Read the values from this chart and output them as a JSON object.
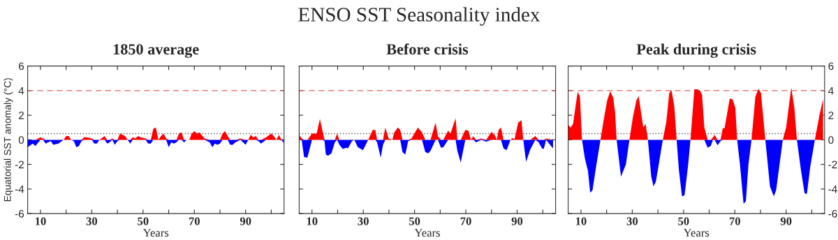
{
  "chart_data": [
    {
      "type": "area",
      "title": "1850 average",
      "annotations": [
        "ENSO SST Seasonality index"
      ],
      "xlabel": "Years",
      "ylabel": "Equatorial SST anomaly (°C)",
      "xlim": [
        5,
        105
      ],
      "ylim": [
        -6,
        6
      ],
      "xticks": [
        10,
        {
          "value": 20,
          "label": null
        },
        30,
        {
          "value": 40,
          "label": null
        },
        50,
        {
          "value": 60,
          "label": null
        },
        70,
        {
          "value": 80,
          "label": null
        },
        90,
        {
          "value": 100,
          "label": null
        }
      ],
      "yticks": [
        -6,
        -4,
        -2,
        0,
        2,
        4,
        6
      ],
      "ref_lines": [
        {
          "axis": "y",
          "value": 4,
          "color": "#e06060",
          "line_style": "dashed"
        },
        {
          "axis": "y",
          "value": 0.5,
          "color": "#555555",
          "line_style": "dotted"
        }
      ],
      "x": [
        5,
        7,
        8,
        10,
        11,
        12,
        14,
        15,
        17,
        19,
        20,
        21,
        22,
        23,
        24,
        25,
        26,
        27,
        28,
        30,
        31,
        32,
        33,
        35,
        36,
        37,
        38,
        39,
        40,
        41,
        43,
        44,
        45,
        46,
        47,
        48,
        49,
        51,
        52,
        53,
        54,
        55,
        56,
        57,
        58,
        59,
        60,
        61,
        62,
        63,
        64,
        65,
        66,
        67,
        68,
        69,
        70,
        71,
        72,
        74,
        76,
        77,
        78,
        79,
        80,
        81,
        82,
        83,
        84,
        85,
        86,
        88,
        90,
        91,
        92,
        93,
        94,
        95,
        96,
        98,
        100,
        101,
        102,
        103,
        104,
        105
      ],
      "series": [
        {
          "color": "#ff0000",
          "values": [
            0,
            0,
            0,
            0.2,
            0.1,
            0,
            0,
            0,
            0,
            0,
            0.3,
            0.3,
            0,
            0,
            0,
            0,
            0,
            0.2,
            0.2,
            0.1,
            0,
            0,
            0,
            0.3,
            0,
            0,
            0.1,
            0,
            0,
            0.5,
            0.3,
            0,
            0,
            0.2,
            0.1,
            0.3,
            0.2,
            0.1,
            0,
            0,
            0.9,
            1.0,
            0,
            0.3,
            0.5,
            0.1,
            0,
            0,
            0,
            0,
            0.5,
            0.6,
            0,
            0,
            0,
            0.5,
            0.7,
            0.5,
            0.6,
            0.1,
            0,
            0,
            0,
            0,
            0,
            0.5,
            0.7,
            0.3,
            0,
            0,
            0,
            0.1,
            0,
            0,
            0.4,
            0.2,
            0.3,
            0,
            0,
            0.2,
            0.5,
            0.3,
            0,
            0.4,
            0,
            0
          ]
        },
        {
          "color": "#0000ff",
          "values": [
            -0.6,
            -0.3,
            -0.5,
            0,
            0,
            -0.3,
            -0.1,
            -0.4,
            -0.3,
            0,
            0,
            0,
            0,
            -0.1,
            -0.6,
            -0.5,
            -0.1,
            0,
            0,
            0,
            -0.3,
            -0.3,
            0,
            0,
            -0.3,
            -0.2,
            0,
            -0.4,
            -0.1,
            0,
            0,
            0,
            -0.3,
            0,
            0,
            0,
            0,
            0,
            -0.3,
            -0.3,
            0,
            0,
            0,
            0,
            0,
            0,
            -0.6,
            -0.2,
            -0.3,
            -0.2,
            0,
            0,
            -0.2,
            0,
            0,
            0,
            0,
            0,
            0,
            0,
            -0.2,
            -0.6,
            -0.3,
            -0.4,
            -0.3,
            0,
            0,
            0,
            -0.4,
            -0.4,
            -0.2,
            0,
            -0.4,
            0,
            0,
            0,
            0,
            -0.1,
            -0.3,
            0,
            0,
            0,
            0,
            0,
            0,
            -0.3
          ]
        }
      ]
    },
    {
      "type": "area",
      "title": "Before crisis",
      "xlabel": "Years",
      "tick_labels": "x",
      "xlim": [
        5,
        105
      ],
      "ylim": [
        -6,
        6
      ],
      "xticks": [
        10,
        {
          "value": 20,
          "label": null
        },
        30,
        {
          "value": 40,
          "label": null
        },
        50,
        {
          "value": 60,
          "label": null
        },
        70,
        {
          "value": 80,
          "label": null
        },
        90,
        {
          "value": 100,
          "label": null
        }
      ],
      "yticks": [
        -6,
        -4,
        -2,
        0,
        2,
        4,
        6
      ],
      "ref_lines": [
        {
          "axis": "y",
          "value": 4,
          "color": "#e06060",
          "line_style": "dashed"
        },
        {
          "axis": "y",
          "value": 0.5,
          "color": "#555555",
          "line_style": "dotted"
        }
      ],
      "x": [
        5,
        6,
        6.9,
        8.2,
        10,
        11.8,
        13.1,
        14,
        14.9,
        15.4,
        16.3,
        17.6,
        18.9,
        19.8,
        20.7,
        22,
        23.4,
        24,
        25.6,
        26.5,
        27.9,
        29.9,
        31.9,
        33.7,
        34.7,
        35.4,
        36.8,
        37.7,
        38.6,
        39.9,
        41.3,
        42.1,
        43.5,
        44.4,
        45.3,
        46.4,
        47.5,
        48.8,
        51.3,
        52.9,
        54.2,
        55.4,
        56.2,
        58.2,
        59.1,
        60.3,
        61.2,
        63.1,
        64,
        66,
        66.7,
        68,
        69.8,
        71,
        72,
        72.9,
        74,
        76.1,
        77.9,
        80,
        81.4,
        82.1,
        82.8,
        83.7,
        84.7,
        85.9,
        87.4,
        88.1,
        89,
        90.4,
        91.7,
        92.4,
        93.5,
        95.1,
        97.1,
        98.4,
        99.7,
        100.4,
        101.3,
        104
      ],
      "series": [
        {
          "color": "#ff0000",
          "values": [
            0.4,
            0.1,
            0,
            0,
            0.5,
            0.5,
            1.7,
            0.8,
            0,
            0,
            0,
            0,
            0,
            0.5,
            0,
            0,
            0,
            0,
            0,
            0,
            0,
            0,
            0,
            0.8,
            0.8,
            0,
            0,
            0,
            1.0,
            0.1,
            0,
            0.6,
            1.0,
            0.8,
            0,
            0,
            0,
            0.1,
            1.0,
            0.6,
            0,
            0,
            0,
            1.4,
            0.3,
            0,
            0,
            0.75,
            0.5,
            1.75,
            0,
            0,
            0.8,
            0.75,
            0,
            0.3,
            0,
            0.1,
            0,
            0.65,
            0.35,
            0,
            0.8,
            1.0,
            0,
            0,
            0,
            0.15,
            0.05,
            1.4,
            1.6,
            0,
            0,
            0,
            0.3,
            0,
            0,
            0,
            0.1,
            0
          ]
        },
        {
          "color": "#0000ff",
          "values": [
            0,
            0,
            -1.4,
            -1.45,
            0,
            0,
            0,
            0,
            -0.1,
            -1.2,
            -1.3,
            -1.1,
            -0.2,
            0,
            -0.4,
            -0.75,
            -0.65,
            -0.7,
            -0.1,
            0,
            -0.6,
            -0.85,
            0,
            0,
            0,
            -0.2,
            -1.45,
            -0.4,
            0,
            0,
            0,
            0,
            0,
            0,
            -1.0,
            -1.2,
            -0.1,
            0,
            0,
            0,
            -1.0,
            -1.1,
            -0.9,
            0,
            0,
            -0.65,
            -0.6,
            0,
            0,
            0,
            -0.9,
            -1.85,
            0,
            0,
            0,
            0,
            -0.2,
            0,
            -0.15,
            0,
            0,
            0,
            0,
            0,
            -0.7,
            -0.85,
            0,
            0,
            0,
            0,
            0,
            0,
            -1.8,
            -0.8,
            0,
            -0.2,
            -0.7,
            -0.75,
            0,
            -0.7
          ]
        }
      ]
    },
    {
      "type": "area",
      "title": "Peak during crisis",
      "xlabel": "Years",
      "xlim": [
        5,
        105
      ],
      "y2lim": [
        -6,
        6
      ],
      "xticks": [
        10,
        {
          "value": 20,
          "label": null
        },
        30,
        {
          "value": 40,
          "label": null
        },
        50,
        {
          "value": 60,
          "label": null
        },
        70,
        {
          "value": 80,
          "label": null
        },
        90,
        {
          "value": 100,
          "label": null
        }
      ],
      "y2ticks": [
        -6,
        -4,
        -2,
        0,
        2,
        4,
        6
      ],
      "ref_lines": [
        {
          "axis": "y2",
          "value": 4,
          "color": "#e06060",
          "line_style": "dashed"
        },
        {
          "axis": "y2",
          "value": 0.5,
          "color": "#555555",
          "line_style": "dotted"
        }
      ],
      "x": [
        5.1,
        6,
        6.9,
        8.7,
        9.6,
        10.4,
        11.5,
        12.7,
        13.6,
        14.5,
        15.8,
        17.6,
        19,
        20.2,
        21.4,
        22.6,
        23.3,
        23.9,
        25.6,
        27.5,
        28.9,
        30.2,
        31.6,
        32.5,
        34.3,
        35.2,
        36.1,
        37.4,
        38.3,
        39.2,
        40.1,
        41.9,
        43.3,
        44.4,
        45.3,
        46.4,
        47.3,
        48.2,
        49.4,
        50.4,
        51.8,
        52.7,
        54.2,
        55.4,
        56.3,
        57.2,
        58.1,
        59.4,
        60.6,
        61.5,
        62.1,
        63.3,
        64.4,
        65.3,
        66,
        68,
        69.1,
        70.2,
        70.9,
        72,
        73.4,
        74.3,
        75.3,
        76.5,
        78,
        79.2,
        80.2,
        81.9,
        83.7,
        85.2,
        86.1,
        88.7,
        90,
        92,
        93.2,
        94.2,
        95.8,
        97.2,
        98.1,
        99.4,
        101.2,
        103,
        104.4
      ],
      "series": [
        {
          "axis": "y2",
          "color": "#ff0000",
          "values": [
            1.2,
            1.0,
            1.3,
            3.9,
            3.5,
            0,
            0,
            0,
            0,
            0,
            0,
            0,
            1.8,
            3.2,
            3.95,
            3.4,
            2.2,
            0,
            0,
            0,
            0,
            1.8,
            3.2,
            3.55,
            1.0,
            1.3,
            0,
            0,
            0,
            0,
            0,
            0,
            1.5,
            3.8,
            4.05,
            2.7,
            0,
            0,
            0,
            0,
            0,
            0,
            4.1,
            4.1,
            4.0,
            3.7,
            1.0,
            0,
            0,
            0.2,
            0.4,
            0,
            0,
            0.95,
            0.95,
            3.35,
            3.3,
            2.6,
            0,
            0,
            0,
            0,
            0,
            0,
            3.5,
            4.15,
            3.8,
            0,
            0,
            0,
            0,
            0,
            1.0,
            4.25,
            2.6,
            0,
            0,
            0,
            0,
            0,
            0,
            2.0,
            3.3
          ]
        },
        {
          "axis": "y2",
          "color": "#0000ff",
          "values": [
            0,
            0,
            0,
            0,
            0,
            0,
            -1.5,
            -2.5,
            -4.3,
            -4.1,
            -2.3,
            0,
            0,
            0,
            0,
            0,
            0,
            0,
            -3.0,
            -2.0,
            0,
            0,
            0,
            0,
            0,
            0,
            0,
            -3.0,
            -3.8,
            -3.4,
            -2.3,
            0,
            0,
            0,
            0,
            0,
            0,
            -2.5,
            -4.6,
            -4.5,
            -2.0,
            0,
            0,
            0,
            0,
            0,
            0,
            -0.65,
            -0.5,
            0,
            0,
            -0.45,
            -0.1,
            0,
            0,
            0,
            0,
            0,
            0,
            -2.0,
            -5.2,
            -5.0,
            -2.0,
            0,
            0,
            0,
            0,
            0,
            -3.8,
            -4.6,
            -4.1,
            0,
            0,
            0,
            0,
            0,
            -2.5,
            -4.35,
            -4.4,
            -2.2,
            0,
            0,
            0
          ]
        }
      ]
    }
  ]
}
